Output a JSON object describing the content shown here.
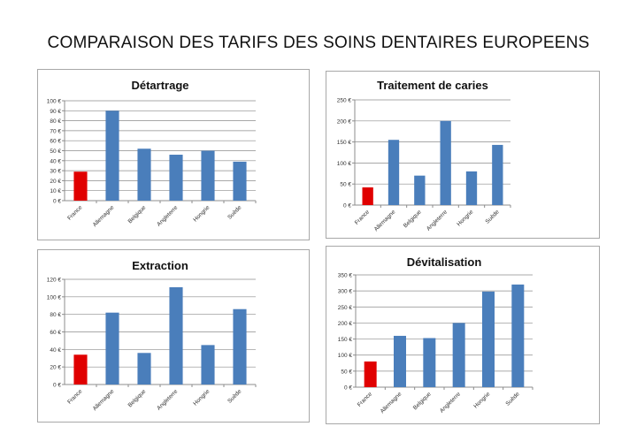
{
  "title": "COMPARAISON DES TARIFS DES SOINS DENTAIRES EUROPEENS",
  "colors": {
    "france": "#e00000",
    "others": "#4a7ebb",
    "grid": "#8c8c8c"
  },
  "chart_data": [
    {
      "type": "bar",
      "title": "Détartrage",
      "categories": [
        "France",
        "Allemagne",
        "Belgique",
        "Angleterre",
        "Hongrie",
        "Suède"
      ],
      "values": [
        29,
        90,
        52,
        46,
        50,
        39
      ],
      "ylim": [
        0,
        100
      ],
      "yticks": [
        0,
        10,
        20,
        30,
        40,
        50,
        60,
        70,
        80,
        90,
        100
      ],
      "ytick_labels": [
        "0 €",
        "10 €",
        "20 €",
        "30 €",
        "40 €",
        "50 €",
        "60 €",
        "70 €",
        "80 €",
        "90 €",
        "100 €"
      ],
      "grid": true,
      "xlabel": "",
      "ylabel": ""
    },
    {
      "type": "bar",
      "title": "Traitement de caries",
      "categories": [
        "France",
        "Allemagne",
        "Belgique",
        "Angleterre",
        "Hongrie",
        "Suède"
      ],
      "values": [
        42,
        155,
        70,
        200,
        80,
        143
      ],
      "ylim": [
        0,
        250
      ],
      "yticks": [
        0,
        50,
        100,
        150,
        200,
        250
      ],
      "ytick_labels": [
        "0 €",
        "50 €",
        "100 €",
        "150 €",
        "200 €",
        "250 €"
      ],
      "grid": true,
      "xlabel": "",
      "ylabel": ""
    },
    {
      "type": "bar",
      "title": "Extraction",
      "categories": [
        "France",
        "Allemagne",
        "Belgique",
        "Angleterre",
        "Hongrie",
        "Suède"
      ],
      "values": [
        34,
        82,
        36,
        111,
        45,
        86
      ],
      "ylim": [
        0,
        120
      ],
      "yticks": [
        0,
        20,
        40,
        60,
        80,
        100,
        120
      ],
      "ytick_labels": [
        "0 €",
        "20 €",
        "40 €",
        "60 €",
        "80 €",
        "100 €",
        "120 €"
      ],
      "grid": true,
      "xlabel": "",
      "ylabel": ""
    },
    {
      "type": "bar",
      "title": "Dévitalisation",
      "categories": [
        "France",
        "Allemagne",
        "Belgique",
        "Angleterre",
        "Hongrie",
        "Suède"
      ],
      "values": [
        80,
        160,
        153,
        200,
        298,
        320
      ],
      "ylim": [
        0,
        350
      ],
      "yticks": [
        0,
        50,
        100,
        150,
        200,
        250,
        300,
        350
      ],
      "ytick_labels": [
        "0 €",
        "50 €",
        "100 €",
        "150 €",
        "200 €",
        "250 €",
        "300 €",
        "350 €"
      ],
      "grid": true,
      "xlabel": "",
      "ylabel": ""
    }
  ]
}
